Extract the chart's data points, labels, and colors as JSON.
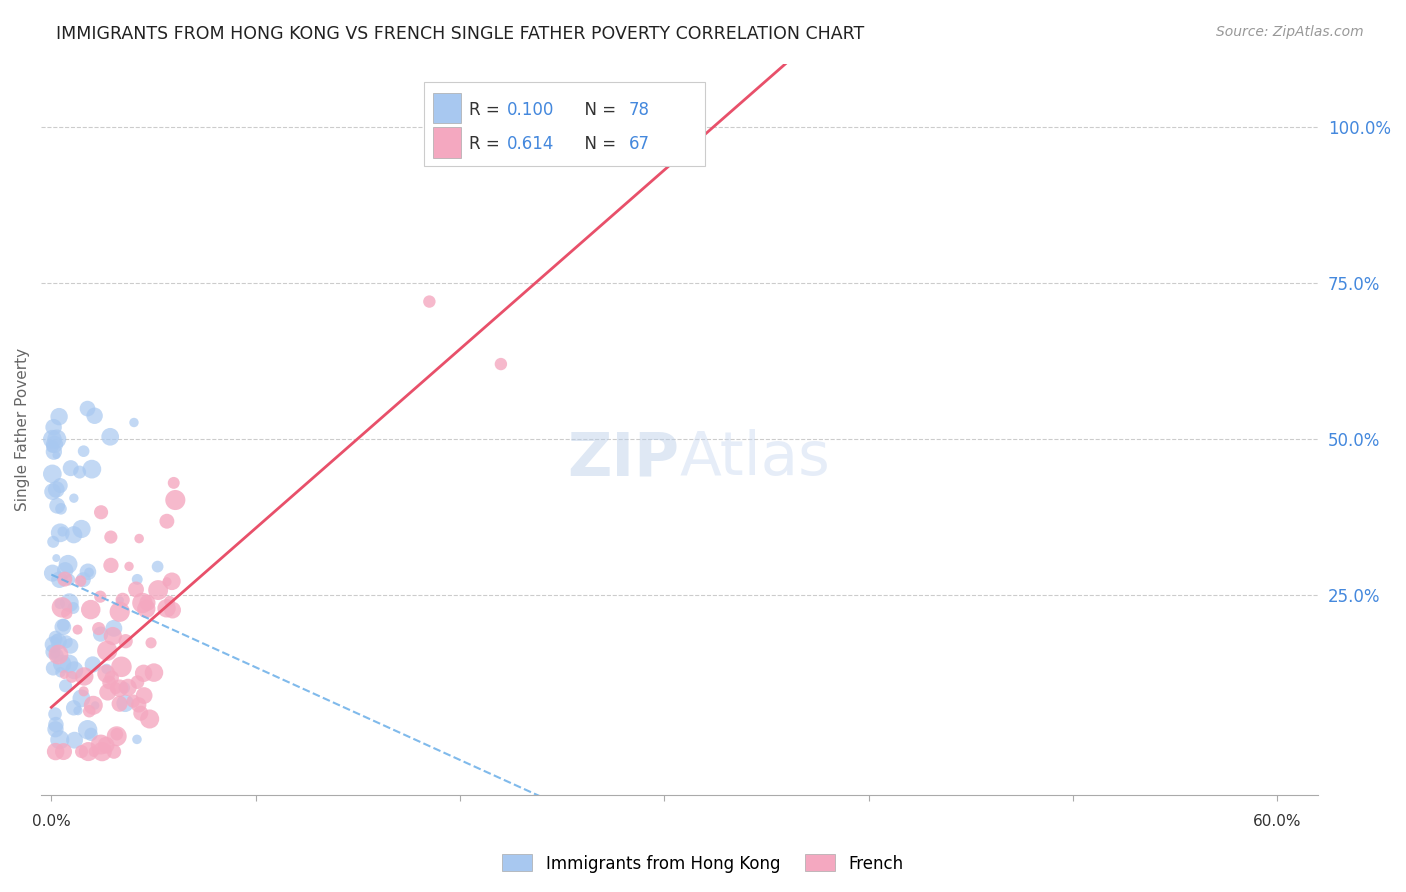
{
  "title": "IMMIGRANTS FROM HONG KONG VS FRENCH SINGLE FATHER POVERTY CORRELATION CHART",
  "source": "Source: ZipAtlas.com",
  "ylabel": "Single Father Poverty",
  "right_yticks": [
    "100.0%",
    "75.0%",
    "50.0%",
    "25.0%"
  ],
  "right_ytick_vals": [
    1.0,
    0.75,
    0.5,
    0.25
  ],
  "legend1_color": "#a8c8f0",
  "legend2_color": "#f4a8c0",
  "line1_color": "#6aaee8",
  "line2_color": "#e8506a",
  "watermark": "ZIPAtlas",
  "watermark_color": "#c8d8f0",
  "background_color": "#ffffff",
  "R1": 0.1,
  "N1": 78,
  "R2": 0.614,
  "N2": 67,
  "xlim": [
    0.0,
    0.6
  ],
  "ylim": [
    0.0,
    1.05
  ],
  "hk_seed": 42,
  "fr_seed": 7
}
